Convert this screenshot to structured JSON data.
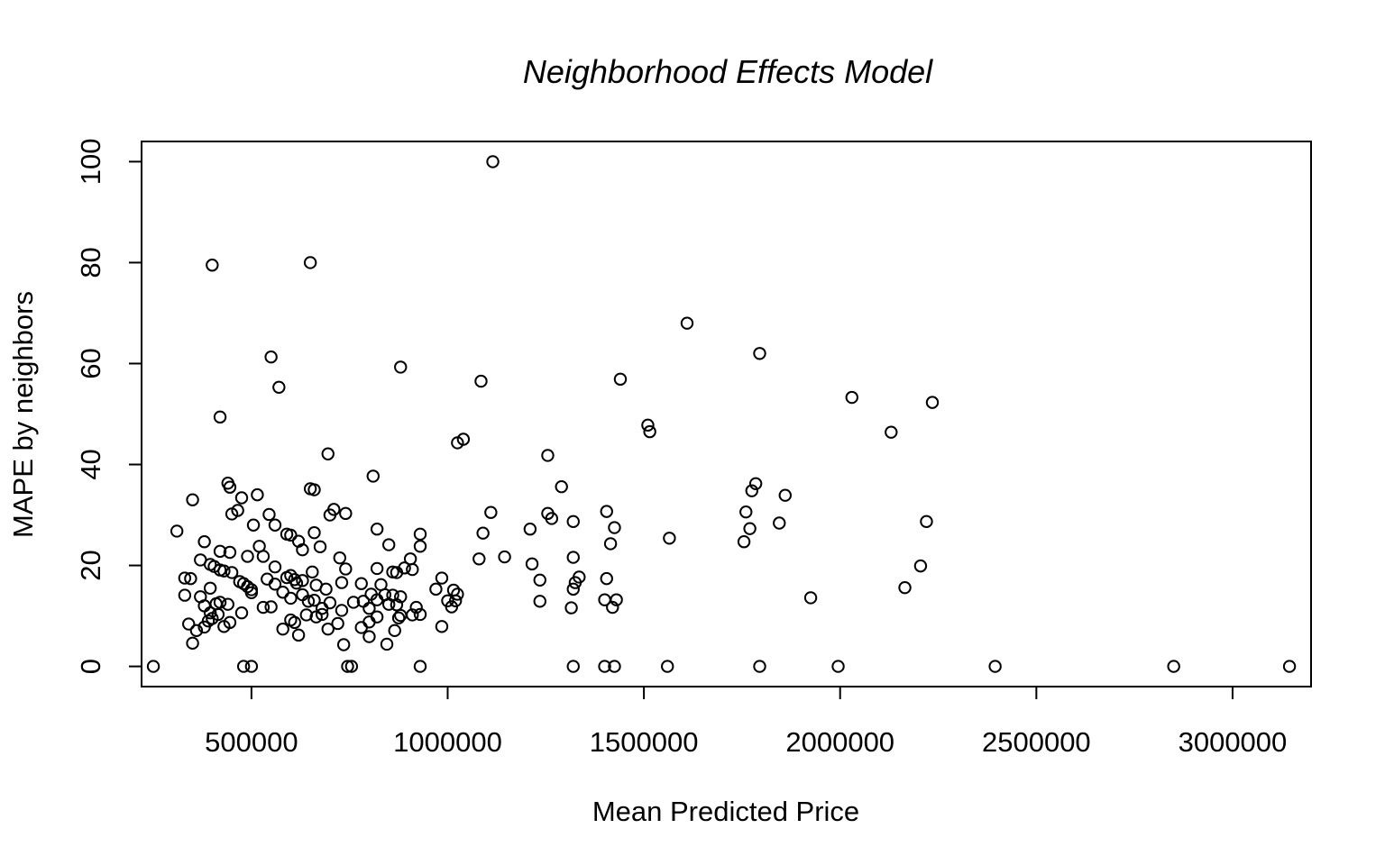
{
  "chart_data": {
    "type": "scatter",
    "title": "Neighborhood Effects Model",
    "xlabel": "Mean Predicted Price",
    "ylabel": "MAPE by neighbors",
    "xlim": [
      220000,
      3200000
    ],
    "ylim": [
      -4,
      104
    ],
    "xticks": [
      500000,
      1000000,
      1500000,
      2000000,
      2500000,
      3000000
    ],
    "yticks": [
      0,
      20,
      40,
      60,
      80,
      100
    ],
    "grid": false,
    "legend": "none",
    "marker": "open-circle",
    "points": [
      [
        250000,
        0
      ],
      [
        480000,
        0
      ],
      [
        500000,
        0
      ],
      [
        745000,
        0
      ],
      [
        755000,
        0
      ],
      [
        930000,
        0
      ],
      [
        1320000,
        0
      ],
      [
        1400000,
        0
      ],
      [
        1425000,
        0
      ],
      [
        1560000,
        0
      ],
      [
        1795000,
        0
      ],
      [
        1995000,
        0
      ],
      [
        2395000,
        0
      ],
      [
        2850000,
        0
      ],
      [
        3145000,
        0
      ],
      [
        1115000,
        100
      ],
      [
        400000,
        79.5
      ],
      [
        650000,
        80
      ],
      [
        1610000,
        68
      ],
      [
        1795000,
        62
      ],
      [
        550000,
        61.3
      ],
      [
        570000,
        55.3
      ],
      [
        880000,
        59.3
      ],
      [
        1085000,
        56.5
      ],
      [
        1440000,
        56.9
      ],
      [
        2030000,
        53.3
      ],
      [
        2235000,
        52.3
      ],
      [
        420000,
        49.4
      ],
      [
        1515000,
        46.5
      ],
      [
        1510000,
        47.8
      ],
      [
        2130000,
        46.4
      ],
      [
        1025000,
        44.3
      ],
      [
        1040000,
        45
      ],
      [
        695000,
        42.1
      ],
      [
        1255000,
        41.8
      ],
      [
        810000,
        37.7
      ],
      [
        440000,
        36.3
      ],
      [
        445000,
        35.5
      ],
      [
        660000,
        35
      ],
      [
        650000,
        35.2
      ],
      [
        350000,
        33
      ],
      [
        475000,
        33.4
      ],
      [
        515000,
        34
      ],
      [
        1290000,
        35.6
      ],
      [
        1775000,
        34.8
      ],
      [
        1785000,
        36.2
      ],
      [
        1860000,
        33.9
      ],
      [
        310000,
        26.8
      ],
      [
        450000,
        30.2
      ],
      [
        465000,
        30.9
      ],
      [
        505000,
        28
      ],
      [
        545000,
        30.1
      ],
      [
        560000,
        28
      ],
      [
        590000,
        26.2
      ],
      [
        600000,
        26
      ],
      [
        660000,
        26.5
      ],
      [
        700000,
        30
      ],
      [
        710000,
        31.1
      ],
      [
        740000,
        30.3
      ],
      [
        820000,
        27.2
      ],
      [
        850000,
        24.1
      ],
      [
        930000,
        26.2
      ],
      [
        1090000,
        26.4
      ],
      [
        1110000,
        30.5
      ],
      [
        1210000,
        27.2
      ],
      [
        1255000,
        30.3
      ],
      [
        1265000,
        29.3
      ],
      [
        1320000,
        28.7
      ],
      [
        1405000,
        30.7
      ],
      [
        1425000,
        27.5
      ],
      [
        1415000,
        24.3
      ],
      [
        1565000,
        25.4
      ],
      [
        1755000,
        24.7
      ],
      [
        1760000,
        30.6
      ],
      [
        1770000,
        27.3
      ],
      [
        1845000,
        28.4
      ],
      [
        2220000,
        28.7
      ],
      [
        2205000,
        19.9
      ],
      [
        2165000,
        15.6
      ],
      [
        1925000,
        13.6
      ],
      [
        380000,
        24.7
      ],
      [
        420000,
        22.8
      ],
      [
        445000,
        22.6
      ],
      [
        490000,
        21.8
      ],
      [
        520000,
        23.8
      ],
      [
        530000,
        21.8
      ],
      [
        560000,
        19.7
      ],
      [
        620000,
        24.8
      ],
      [
        630000,
        23.1
      ],
      [
        675000,
        23.7
      ],
      [
        725000,
        21.5
      ],
      [
        740000,
        19.3
      ],
      [
        820000,
        19.4
      ],
      [
        860000,
        18.7
      ],
      [
        870000,
        18.6
      ],
      [
        890000,
        19.5
      ],
      [
        905000,
        21.3
      ],
      [
        910000,
        19.2
      ],
      [
        930000,
        23.8
      ],
      [
        1080000,
        21.3
      ],
      [
        1145000,
        21.7
      ],
      [
        1215000,
        20.3
      ],
      [
        1320000,
        21.6
      ],
      [
        1235000,
        17.1
      ],
      [
        1335000,
        17.7
      ],
      [
        1325000,
        16.6
      ],
      [
        1320000,
        15.3
      ],
      [
        1405000,
        17.4
      ],
      [
        1400000,
        13.2
      ],
      [
        1420000,
        11.7
      ],
      [
        1430000,
        13.2
      ],
      [
        1235000,
        12.9
      ],
      [
        1315000,
        11.6
      ],
      [
        330000,
        17.5
      ],
      [
        345000,
        17.4
      ],
      [
        370000,
        21.1
      ],
      [
        395000,
        20.2
      ],
      [
        405000,
        19.8
      ],
      [
        420000,
        19.1
      ],
      [
        430000,
        18.9
      ],
      [
        450000,
        18.6
      ],
      [
        470000,
        16.8
      ],
      [
        490000,
        15.8
      ],
      [
        500000,
        15.2
      ],
      [
        540000,
        17.3
      ],
      [
        560000,
        16.3
      ],
      [
        590000,
        17.6
      ],
      [
        600000,
        18
      ],
      [
        610000,
        17.2
      ],
      [
        615000,
        16.5
      ],
      [
        630000,
        17
      ],
      [
        655000,
        18.7
      ],
      [
        665000,
        16.1
      ],
      [
        690000,
        15.3
      ],
      [
        730000,
        16.6
      ],
      [
        780000,
        16.4
      ],
      [
        805000,
        14.3
      ],
      [
        830000,
        16.2
      ],
      [
        840000,
        14.2
      ],
      [
        860000,
        14.1
      ],
      [
        880000,
        13.8
      ],
      [
        985000,
        17.5
      ],
      [
        970000,
        15.3
      ],
      [
        1015000,
        15.1
      ],
      [
        1025000,
        14.3
      ],
      [
        1000000,
        13
      ],
      [
        1010000,
        11.8
      ],
      [
        1020000,
        13
      ],
      [
        330000,
        14.1
      ],
      [
        370000,
        13.8
      ],
      [
        380000,
        12
      ],
      [
        395000,
        15.5
      ],
      [
        410000,
        12.4
      ],
      [
        420000,
        12.7
      ],
      [
        440000,
        12.3
      ],
      [
        480000,
        16.4
      ],
      [
        500000,
        14.6
      ],
      [
        530000,
        11.7
      ],
      [
        550000,
        11.8
      ],
      [
        580000,
        14.7
      ],
      [
        600000,
        13.5
      ],
      [
        630000,
        14.2
      ],
      [
        645000,
        12.9
      ],
      [
        660000,
        13.1
      ],
      [
        680000,
        11.5
      ],
      [
        700000,
        12.6
      ],
      [
        730000,
        11.1
      ],
      [
        760000,
        12.7
      ],
      [
        785000,
        12.9
      ],
      [
        800000,
        11.5
      ],
      [
        820000,
        13.2
      ],
      [
        850000,
        12.3
      ],
      [
        870000,
        12.2
      ],
      [
        910000,
        10.2
      ],
      [
        930000,
        10.3
      ],
      [
        920000,
        11.7
      ],
      [
        340000,
        8.4
      ],
      [
        360000,
        7.1
      ],
      [
        380000,
        7.8
      ],
      [
        395000,
        10.6
      ],
      [
        400000,
        9.5
      ],
      [
        415000,
        10.3
      ],
      [
        430000,
        7.9
      ],
      [
        445000,
        8.7
      ],
      [
        475000,
        10.6
      ],
      [
        580000,
        7.4
      ],
      [
        600000,
        9.2
      ],
      [
        610000,
        8.7
      ],
      [
        620000,
        6.2
      ],
      [
        640000,
        10.2
      ],
      [
        665000,
        9.8
      ],
      [
        680000,
        10.3
      ],
      [
        695000,
        7.4
      ],
      [
        720000,
        8.5
      ],
      [
        735000,
        4.3
      ],
      [
        780000,
        7.7
      ],
      [
        800000,
        8.8
      ],
      [
        820000,
        9.8
      ],
      [
        800000,
        5.9
      ],
      [
        845000,
        4.4
      ],
      [
        865000,
        7.1
      ],
      [
        875000,
        9.6
      ],
      [
        880000,
        10.1
      ],
      [
        985000,
        7.9
      ],
      [
        350000,
        4.6
      ],
      [
        390000,
        9
      ]
    ]
  }
}
